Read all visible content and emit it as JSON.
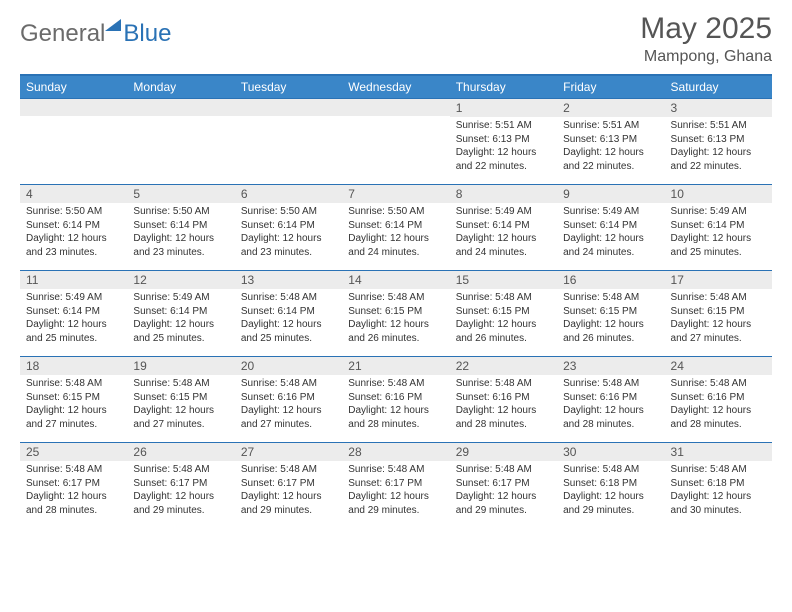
{
  "logo": {
    "part1": "General",
    "part2": "Blue"
  },
  "title": "May 2025",
  "subtitle": "Mampong, Ghana",
  "weekdays": [
    "Sunday",
    "Monday",
    "Tuesday",
    "Wednesday",
    "Thursday",
    "Friday",
    "Saturday"
  ],
  "weeks": [
    [
      {
        "empty": true
      },
      {
        "empty": true
      },
      {
        "empty": true
      },
      {
        "empty": true
      },
      {
        "day": "1",
        "sunrise": "5:51 AM",
        "sunset": "6:13 PM",
        "daylight": "12 hours and 22 minutes."
      },
      {
        "day": "2",
        "sunrise": "5:51 AM",
        "sunset": "6:13 PM",
        "daylight": "12 hours and 22 minutes."
      },
      {
        "day": "3",
        "sunrise": "5:51 AM",
        "sunset": "6:13 PM",
        "daylight": "12 hours and 22 minutes."
      }
    ],
    [
      {
        "day": "4",
        "sunrise": "5:50 AM",
        "sunset": "6:14 PM",
        "daylight": "12 hours and 23 minutes."
      },
      {
        "day": "5",
        "sunrise": "5:50 AM",
        "sunset": "6:14 PM",
        "daylight": "12 hours and 23 minutes."
      },
      {
        "day": "6",
        "sunrise": "5:50 AM",
        "sunset": "6:14 PM",
        "daylight": "12 hours and 23 minutes."
      },
      {
        "day": "7",
        "sunrise": "5:50 AM",
        "sunset": "6:14 PM",
        "daylight": "12 hours and 24 minutes."
      },
      {
        "day": "8",
        "sunrise": "5:49 AM",
        "sunset": "6:14 PM",
        "daylight": "12 hours and 24 minutes."
      },
      {
        "day": "9",
        "sunrise": "5:49 AM",
        "sunset": "6:14 PM",
        "daylight": "12 hours and 24 minutes."
      },
      {
        "day": "10",
        "sunrise": "5:49 AM",
        "sunset": "6:14 PM",
        "daylight": "12 hours and 25 minutes."
      }
    ],
    [
      {
        "day": "11",
        "sunrise": "5:49 AM",
        "sunset": "6:14 PM",
        "daylight": "12 hours and 25 minutes."
      },
      {
        "day": "12",
        "sunrise": "5:49 AM",
        "sunset": "6:14 PM",
        "daylight": "12 hours and 25 minutes."
      },
      {
        "day": "13",
        "sunrise": "5:48 AM",
        "sunset": "6:14 PM",
        "daylight": "12 hours and 25 minutes."
      },
      {
        "day": "14",
        "sunrise": "5:48 AM",
        "sunset": "6:15 PM",
        "daylight": "12 hours and 26 minutes."
      },
      {
        "day": "15",
        "sunrise": "5:48 AM",
        "sunset": "6:15 PM",
        "daylight": "12 hours and 26 minutes."
      },
      {
        "day": "16",
        "sunrise": "5:48 AM",
        "sunset": "6:15 PM",
        "daylight": "12 hours and 26 minutes."
      },
      {
        "day": "17",
        "sunrise": "5:48 AM",
        "sunset": "6:15 PM",
        "daylight": "12 hours and 27 minutes."
      }
    ],
    [
      {
        "day": "18",
        "sunrise": "5:48 AM",
        "sunset": "6:15 PM",
        "daylight": "12 hours and 27 minutes."
      },
      {
        "day": "19",
        "sunrise": "5:48 AM",
        "sunset": "6:15 PM",
        "daylight": "12 hours and 27 minutes."
      },
      {
        "day": "20",
        "sunrise": "5:48 AM",
        "sunset": "6:16 PM",
        "daylight": "12 hours and 27 minutes."
      },
      {
        "day": "21",
        "sunrise": "5:48 AM",
        "sunset": "6:16 PM",
        "daylight": "12 hours and 28 minutes."
      },
      {
        "day": "22",
        "sunrise": "5:48 AM",
        "sunset": "6:16 PM",
        "daylight": "12 hours and 28 minutes."
      },
      {
        "day": "23",
        "sunrise": "5:48 AM",
        "sunset": "6:16 PM",
        "daylight": "12 hours and 28 minutes."
      },
      {
        "day": "24",
        "sunrise": "5:48 AM",
        "sunset": "6:16 PM",
        "daylight": "12 hours and 28 minutes."
      }
    ],
    [
      {
        "day": "25",
        "sunrise": "5:48 AM",
        "sunset": "6:17 PM",
        "daylight": "12 hours and 28 minutes."
      },
      {
        "day": "26",
        "sunrise": "5:48 AM",
        "sunset": "6:17 PM",
        "daylight": "12 hours and 29 minutes."
      },
      {
        "day": "27",
        "sunrise": "5:48 AM",
        "sunset": "6:17 PM",
        "daylight": "12 hours and 29 minutes."
      },
      {
        "day": "28",
        "sunrise": "5:48 AM",
        "sunset": "6:17 PM",
        "daylight": "12 hours and 29 minutes."
      },
      {
        "day": "29",
        "sunrise": "5:48 AM",
        "sunset": "6:17 PM",
        "daylight": "12 hours and 29 minutes."
      },
      {
        "day": "30",
        "sunrise": "5:48 AM",
        "sunset": "6:18 PM",
        "daylight": "12 hours and 29 minutes."
      },
      {
        "day": "31",
        "sunrise": "5:48 AM",
        "sunset": "6:18 PM",
        "daylight": "12 hours and 30 minutes."
      }
    ]
  ],
  "labels": {
    "sunrise": "Sunrise: ",
    "sunset": "Sunset: ",
    "daylight": "Daylight: "
  },
  "colors": {
    "header_bg": "#3a86c8",
    "header_text": "#ffffff",
    "border": "#2a72b5",
    "daynum_bg": "#ececec",
    "body_text": "#333333",
    "title_text": "#555555",
    "logo_gray": "#6b6b6b",
    "logo_blue": "#2a72b5",
    "page_bg": "#ffffff"
  },
  "typography": {
    "title_fontsize": 30,
    "subtitle_fontsize": 16,
    "weekday_fontsize": 12,
    "daynum_fontsize": 12,
    "body_fontsize": 10,
    "logo_fontsize": 24
  }
}
